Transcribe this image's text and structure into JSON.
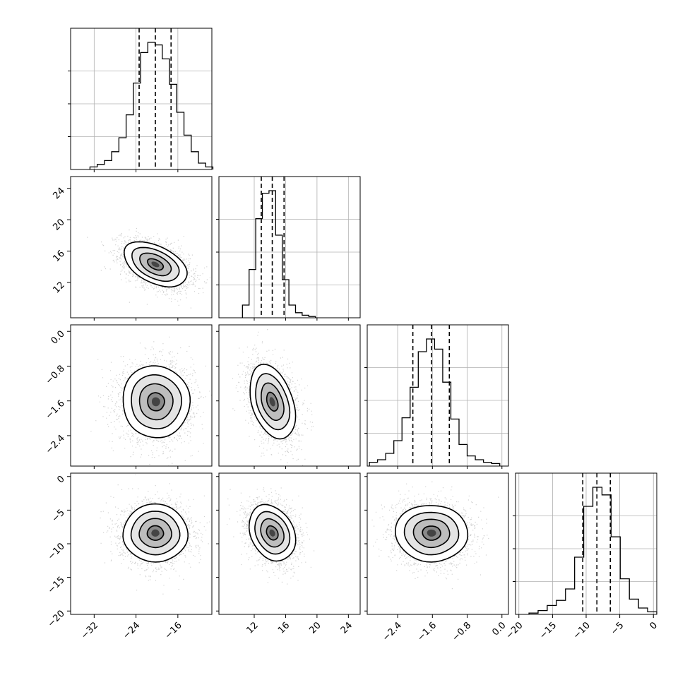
{
  "chart_data": {
    "type": "corner",
    "grid": true,
    "x_ticks": [
      {
        "dim": 0,
        "labels": [
          "−32",
          "−24",
          "−16"
        ]
      },
      {
        "dim": 1,
        "labels": [
          "12",
          "16",
          "20",
          "24"
        ]
      },
      {
        "dim": 2,
        "labels": [
          "−2.4",
          "−1.6",
          "−0.8",
          "0.0"
        ]
      },
      {
        "dim": 3,
        "labels": [
          "−20",
          "−15",
          "−10",
          "−5",
          "0"
        ]
      }
    ],
    "y_ticks": [
      {
        "dim": 1,
        "labels": [
          "12",
          "16",
          "20",
          "24"
        ]
      },
      {
        "dim": 2,
        "labels": [
          "−2.4",
          "−1.6",
          "−0.8",
          "0.0"
        ]
      },
      {
        "dim": 3,
        "labels": [
          "−20",
          "−15",
          "−10",
          "−5",
          "0"
        ]
      }
    ],
    "dims": [
      {
        "range": [
          -36.5,
          -9.5
        ],
        "ticks": [
          -32,
          -24,
          -16
        ],
        "quantiles": [
          -23.4,
          -20.3,
          -17.3
        ],
        "hist": {
          "lo": -32.8,
          "hi": -9.3,
          "counts": [
            0.02,
            0.04,
            0.07,
            0.14,
            0.25,
            0.43,
            0.68,
            0.92,
            1.0,
            0.98,
            0.87,
            0.67,
            0.45,
            0.27,
            0.14,
            0.05,
            0.02
          ]
        }
      },
      {
        "range": [
          7.5,
          25.5
        ],
        "ticks": [
          12,
          16,
          20,
          24
        ],
        "quantiles": [
          12.9,
          14.3,
          15.8
        ],
        "hist": {
          "lo": 10.5,
          "hi": 19.8,
          "counts": [
            0.1,
            0.38,
            0.78,
            0.98,
            1.0,
            0.65,
            0.3,
            0.1,
            0.04,
            0.02,
            0.01
          ]
        }
      },
      {
        "range": [
          -3.1,
          0.15
        ],
        "ticks": [
          -2.4,
          -1.6,
          -0.8,
          0.0
        ],
        "quantiles": [
          -2.05,
          -1.62,
          -1.21
        ],
        "hist": {
          "lo": -3.05,
          "hi": -0.05,
          "counts": [
            0.03,
            0.05,
            0.1,
            0.2,
            0.38,
            0.62,
            0.9,
            1.0,
            0.92,
            0.66,
            0.37,
            0.17,
            0.08,
            0.05,
            0.03,
            0.02
          ]
        }
      },
      {
        "range": [
          -20.5,
          0.5
        ],
        "ticks": [
          -20,
          -15,
          -10,
          -5,
          0
        ],
        "quantiles": [
          -10.5,
          -8.4,
          -6.4
        ],
        "hist": {
          "lo": -18.5,
          "hi": 0.5,
          "counts": [
            0.01,
            0.03,
            0.07,
            0.11,
            0.2,
            0.45,
            0.85,
            1.0,
            0.94,
            0.61,
            0.28,
            0.12,
            0.05,
            0.02
          ]
        }
      }
    ],
    "pairs": [
      {
        "row": 1,
        "col": 0,
        "mean": [
          -20.3,
          14.3
        ],
        "sd": [
          3.0,
          1.45
        ],
        "rho": -0.45
      },
      {
        "row": 2,
        "col": 0,
        "mean": [
          -20.2,
          -1.62
        ],
        "sd": [
          3.2,
          0.42
        ],
        "rho": 0.0
      },
      {
        "row": 2,
        "col": 1,
        "mean": [
          14.3,
          -1.62
        ],
        "sd": [
          1.45,
          0.42
        ],
        "rho": -0.35
      },
      {
        "row": 3,
        "col": 0,
        "mean": [
          -20.3,
          -8.4
        ],
        "sd": [
          3.1,
          2.1
        ],
        "rho": 0.0
      },
      {
        "row": 3,
        "col": 1,
        "mean": [
          14.3,
          -8.4
        ],
        "sd": [
          1.45,
          2.1
        ],
        "rho": -0.25
      },
      {
        "row": 3,
        "col": 2,
        "mean": [
          -1.62,
          -8.4
        ],
        "sd": [
          0.42,
          2.1
        ],
        "rho": 0.0
      }
    ]
  }
}
